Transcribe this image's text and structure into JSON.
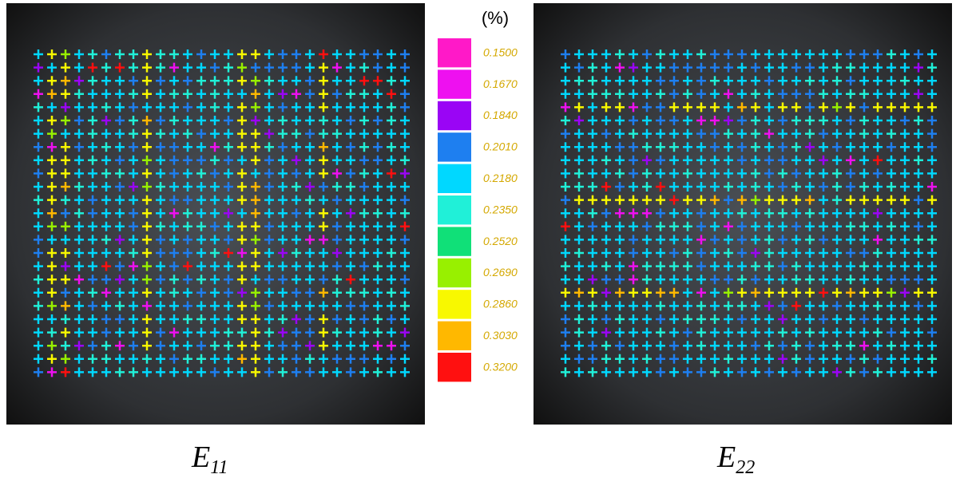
{
  "colorbar": {
    "unit": "(%)",
    "items": [
      {
        "label": "0.1500",
        "color": "#ff19c8"
      },
      {
        "label": "0.1670",
        "color": "#ee10f0"
      },
      {
        "label": "0.1840",
        "color": "#9a05f5"
      },
      {
        "label": "0.2010",
        "color": "#1e7ff0"
      },
      {
        "label": "0.2180",
        "color": "#00d8ff"
      },
      {
        "label": "0.2350",
        "color": "#20f0d8"
      },
      {
        "label": "0.2520",
        "color": "#10e078"
      },
      {
        "label": "0.2690",
        "color": "#98f000"
      },
      {
        "label": "0.2860",
        "color": "#f8f800"
      },
      {
        "label": "0.3030",
        "color": "#ffb800"
      },
      {
        "label": "0.3200",
        "color": "#ff1010"
      }
    ]
  },
  "panels": [
    {
      "label": {
        "main": "E",
        "sub": "11"
      }
    },
    {
      "label": {
        "main": "E",
        "sub": "22"
      }
    }
  ]
}
